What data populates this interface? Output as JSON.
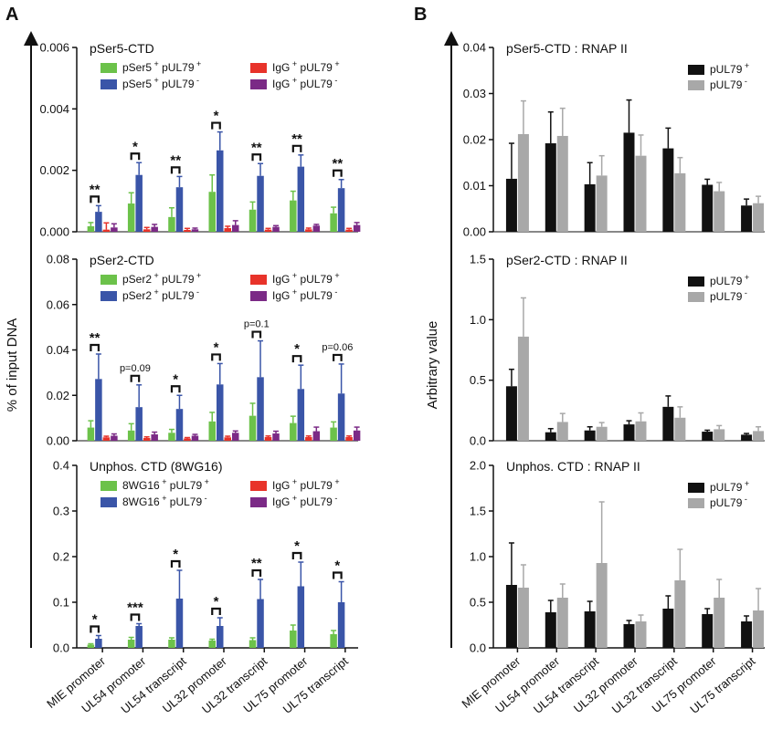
{
  "figure": {
    "panel_labels": [
      "A",
      "B"
    ],
    "ylabel_left": "% of input DNA",
    "ylabel_right": "Arbitrary value",
    "colors": {
      "green": "#6cc24a",
      "blue": "#3a55a8",
      "red": "#e8332a",
      "purple": "#7b2a86",
      "black": "#111111",
      "gray": "#a8a8a8"
    }
  },
  "chart_data": [
    {
      "type": "bar",
      "title": "pSer5-CTD",
      "categories": [
        "MIE promoter",
        "UL54 promoter",
        "UL54 transcript",
        "UL32 promoter",
        "UL32 transcript",
        "UL75 promoter",
        "UL75 transcript"
      ],
      "ylim": [
        0,
        0.006
      ],
      "yticks": [
        "0.000",
        "0.002",
        "0.004",
        "0.006"
      ],
      "series": [
        {
          "name": "pSer5 + pUL79 +",
          "values": [
            0.00018,
            0.00092,
            0.00048,
            0.0013,
            0.00072,
            0.00102,
            0.0006
          ],
          "errors": [
            0.00012,
            0.00035,
            0.0003,
            0.00055,
            0.00025,
            0.0003,
            0.0002
          ]
        },
        {
          "name": "pSer5 + pUL79 -",
          "values": [
            0.00065,
            0.00185,
            0.00145,
            0.00265,
            0.00182,
            0.00212,
            0.00142
          ],
          "errors": [
            0.0002,
            0.0004,
            0.00035,
            0.0006,
            0.0004,
            0.00038,
            0.00028
          ]
        },
        {
          "name": "IgG + pUL79 +",
          "values": [
            7e-05,
            8e-05,
            6e-05,
            0.00012,
            7e-05,
            8e-05,
            7e-05
          ],
          "errors": [
            0.00022,
            6e-05,
            5e-05,
            6e-05,
            4e-05,
            4e-05,
            4e-05
          ]
        },
        {
          "name": "IgG + pUL79 -",
          "values": [
            0.00014,
            0.00016,
            8e-05,
            0.00022,
            0.00016,
            0.0002,
            0.00022
          ],
          "errors": [
            0.00012,
            8e-05,
            4e-05,
            0.00014,
            4e-05,
            4e-05,
            8e-05
          ]
        }
      ],
      "significance": [
        "**",
        "*",
        "**",
        "*",
        "**",
        "**",
        "**"
      ]
    },
    {
      "type": "bar",
      "title": "pSer2-CTD",
      "categories": [
        "MIE promoter",
        "UL54 promoter",
        "UL54 transcript",
        "UL32 promoter",
        "UL32 transcript",
        "UL75 promoter",
        "UL75 transcript"
      ],
      "ylim": [
        0,
        0.08
      ],
      "yticks": [
        "0.00",
        "0.02",
        "0.04",
        "0.06",
        "0.08"
      ],
      "series": [
        {
          "name": "pSer2 + pUL79 +",
          "values": [
            0.0058,
            0.0045,
            0.0035,
            0.0085,
            0.011,
            0.0078,
            0.0058
          ],
          "errors": [
            0.003,
            0.003,
            0.0015,
            0.004,
            0.0055,
            0.003,
            0.0025
          ]
        },
        {
          "name": "pSer2 + pUL79 -",
          "values": [
            0.0272,
            0.0148,
            0.014,
            0.0248,
            0.028,
            0.0228,
            0.0208
          ],
          "errors": [
            0.011,
            0.0098,
            0.006,
            0.0092,
            0.016,
            0.0105,
            0.013
          ]
        },
        {
          "name": "IgG + pUL79 +",
          "values": [
            0.0015,
            0.0012,
            0.001,
            0.0015,
            0.0016,
            0.0016,
            0.0016
          ],
          "errors": [
            0.0005,
            0.0005,
            0.0004,
            0.0005,
            0.0005,
            0.0005,
            0.0005
          ]
        },
        {
          "name": "IgG + pUL79 -",
          "values": [
            0.0022,
            0.0028,
            0.0022,
            0.0035,
            0.0032,
            0.0042,
            0.0045
          ],
          "errors": [
            0.0008,
            0.001,
            0.0006,
            0.0008,
            0.001,
            0.0018,
            0.0015
          ]
        }
      ],
      "significance": [
        "**",
        "p=0.09",
        "*",
        "*",
        "p=0.1",
        "*",
        "p=0.06"
      ]
    },
    {
      "type": "bar",
      "title": "Unphos. CTD (8WG16)",
      "categories": [
        "MIE promoter",
        "UL54 promoter",
        "UL54 transcript",
        "UL32 promoter",
        "UL32 transcript",
        "UL75 promoter",
        "UL75 transcript"
      ],
      "ylim": [
        0,
        0.4
      ],
      "yticks": [
        "0.0",
        "0.1",
        "0.2",
        "0.3",
        "0.4"
      ],
      "series": [
        {
          "name": "8WG16 + pUL79 +",
          "values": [
            0.007,
            0.018,
            0.018,
            0.016,
            0.017,
            0.038,
            0.03
          ],
          "errors": [
            0.002,
            0.005,
            0.004,
            0.003,
            0.005,
            0.012,
            0.008
          ]
        },
        {
          "name": "8WG16 + pUL79 -",
          "values": [
            0.02,
            0.048,
            0.108,
            0.048,
            0.107,
            0.135,
            0.1
          ],
          "errors": [
            0.007,
            0.005,
            0.062,
            0.018,
            0.043,
            0.053,
            0.045
          ]
        },
        {
          "name": "IgG + pUL79 +",
          "values": [
            0,
            0,
            0,
            0,
            0,
            0,
            0
          ],
          "errors": [
            0,
            0,
            0,
            0,
            0,
            0,
            0
          ]
        },
        {
          "name": "IgG + pUL79 -",
          "values": [
            0,
            0,
            0,
            0,
            0,
            0,
            0
          ],
          "errors": [
            0,
            0,
            0,
            0,
            0,
            0,
            0
          ]
        }
      ],
      "significance": [
        "*",
        "***",
        "*",
        "*",
        "**",
        "*",
        "*"
      ]
    },
    {
      "type": "bar",
      "title": "pSer5-CTD : RNAP II",
      "categories": [
        "MIE promoter",
        "UL54 promoter",
        "UL54 transcript",
        "UL32 promoter",
        "UL32 transcript",
        "UL75 promoter",
        "UL75 transcript"
      ],
      "ylim": [
        0,
        0.04
      ],
      "yticks": [
        "0.00",
        "0.01",
        "0.02",
        "0.03",
        "0.04"
      ],
      "series": [
        {
          "name": "pUL79 +",
          "values": [
            0.0115,
            0.0192,
            0.0103,
            0.0215,
            0.0181,
            0.0102,
            0.0057
          ],
          "errors": [
            0.0077,
            0.0068,
            0.0047,
            0.0071,
            0.0044,
            0.0012,
            0.0014
          ]
        },
        {
          "name": "pUL79 -",
          "values": [
            0.0212,
            0.0208,
            0.0122,
            0.0165,
            0.0127,
            0.0088,
            0.0062
          ],
          "errors": [
            0.0072,
            0.006,
            0.0043,
            0.0045,
            0.0034,
            0.0019,
            0.0015
          ]
        }
      ]
    },
    {
      "type": "bar",
      "title": "pSer2-CTD : RNAP II",
      "categories": [
        "MIE promoter",
        "UL54 promoter",
        "UL54 transcript",
        "UL32 promoter",
        "UL32 transcript",
        "UL75 promoter",
        "UL75 transcript"
      ],
      "ylim": [
        0,
        1.5
      ],
      "yticks": [
        "0.0",
        "0.5",
        "1.0",
        "1.5"
      ],
      "series": [
        {
          "name": "pUL79 +",
          "values": [
            0.45,
            0.07,
            0.085,
            0.135,
            0.28,
            0.075,
            0.05
          ],
          "errors": [
            0.14,
            0.03,
            0.03,
            0.03,
            0.09,
            0.012,
            0.01
          ]
        },
        {
          "name": "pUL79 -",
          "values": [
            0.86,
            0.155,
            0.115,
            0.16,
            0.19,
            0.095,
            0.08
          ],
          "errors": [
            0.32,
            0.07,
            0.035,
            0.07,
            0.09,
            0.03,
            0.035
          ]
        }
      ]
    },
    {
      "type": "bar",
      "title": "Unphos. CTD : RNAP II",
      "categories": [
        "MIE promoter",
        "UL54 promoter",
        "UL54 transcript",
        "UL32 promoter",
        "UL32 transcript",
        "UL75 promoter",
        "UL75 transcript"
      ],
      "ylim": [
        0,
        2.0
      ],
      "yticks": [
        "0.0",
        "0.5",
        "1.0",
        "1.5",
        "2.0"
      ],
      "series": [
        {
          "name": "pUL79 +",
          "values": [
            0.69,
            0.39,
            0.4,
            0.26,
            0.43,
            0.37,
            0.29
          ],
          "errors": [
            0.46,
            0.13,
            0.11,
            0.04,
            0.14,
            0.06,
            0.06
          ]
        },
        {
          "name": "pUL79 -",
          "values": [
            0.66,
            0.55,
            0.93,
            0.29,
            0.74,
            0.55,
            0.41
          ],
          "errors": [
            0.25,
            0.15,
            0.67,
            0.07,
            0.34,
            0.2,
            0.24
          ]
        }
      ]
    }
  ]
}
